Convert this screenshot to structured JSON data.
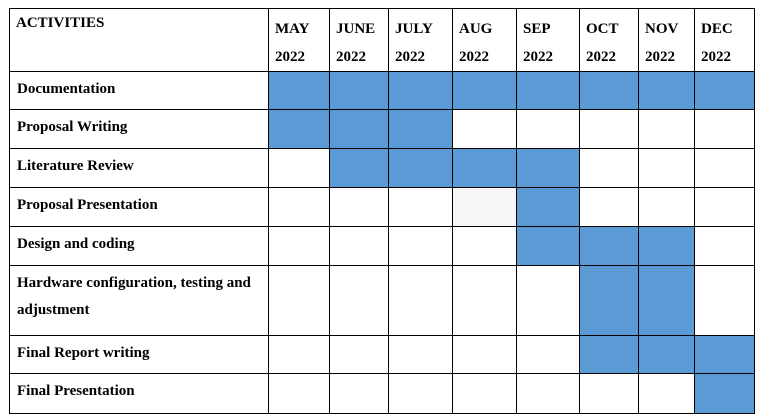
{
  "header": {
    "activities_label": "ACTIVITIES",
    "months": [
      {
        "month": "MAY",
        "year": "2022"
      },
      {
        "month": "JUNE",
        "year": "2022"
      },
      {
        "month": "JULY",
        "year": "2022"
      },
      {
        "month": "AUG",
        "year": "2022"
      },
      {
        "month": "SEP",
        "year": "2022"
      },
      {
        "month": "OCT",
        "year": "2022"
      },
      {
        "month": "NOV",
        "year": "2022"
      },
      {
        "month": "DEC",
        "year": "2022"
      }
    ]
  },
  "rows": [
    {
      "activity": "Documentation",
      "active": [
        1,
        1,
        1,
        1,
        1,
        1,
        1,
        1
      ]
    },
    {
      "activity": "Proposal Writing",
      "active": [
        1,
        1,
        1,
        0,
        0,
        0,
        0,
        0
      ]
    },
    {
      "activity": "Literature Review",
      "active": [
        0,
        1,
        1,
        1,
        1,
        0,
        0,
        0
      ]
    },
    {
      "activity": "Proposal Presentation",
      "active": [
        0,
        0,
        0,
        0,
        1,
        0,
        0,
        0
      ]
    },
    {
      "activity": "Design and coding",
      "active": [
        0,
        0,
        0,
        0,
        1,
        1,
        1,
        0
      ]
    },
    {
      "activity": "Hardware configuration, testing and adjustment",
      "active": [
        0,
        0,
        0,
        0,
        0,
        1,
        1,
        0
      ]
    },
    {
      "activity": "Final Report writing",
      "active": [
        0,
        0,
        0,
        0,
        0,
        1,
        1,
        1
      ]
    },
    {
      "activity": "Final Presentation",
      "active": [
        0,
        0,
        0,
        0,
        0,
        0,
        0,
        1
      ]
    }
  ],
  "colors": {
    "bar_fill": "#5b9bd5",
    "border": "#000000",
    "faint_cell": "#f7f7f7"
  }
}
